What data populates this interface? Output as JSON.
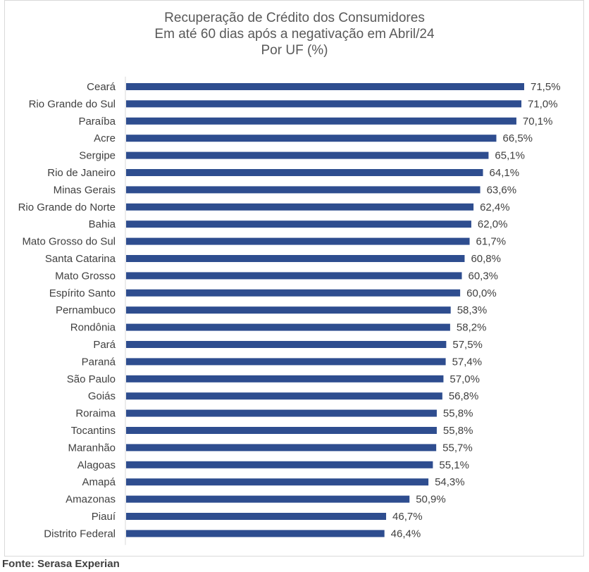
{
  "chart_data": {
    "type": "bar",
    "orientation": "horizontal",
    "title": [
      "Recuperação de Crédito dos Consumidores",
      "Em até 60 dias após a negativação em Abril/24",
      "Por UF (%)"
    ],
    "categories": [
      "Ceará",
      "Rio Grande do Sul",
      "Paraíba",
      "Acre",
      "Sergipe",
      "Rio de Janeiro",
      "Minas Gerais",
      "Rio Grande do Norte",
      "Bahia",
      "Mato Grosso do Sul",
      "Santa Catarina",
      "Mato Grosso",
      "Espírito Santo",
      "Pernambuco",
      "Rondônia",
      "Pará",
      "Paraná",
      "São Paulo",
      "Goiás",
      "Roraima",
      "Tocantins",
      "Maranhão",
      "Alagoas",
      "Amapá",
      "Amazonas",
      "Piauí",
      "Distrito Federal"
    ],
    "values": [
      71.5,
      71.0,
      70.1,
      66.5,
      65.1,
      64.1,
      63.6,
      62.4,
      62.0,
      61.7,
      60.8,
      60.3,
      60.0,
      58.3,
      58.2,
      57.5,
      57.4,
      57.0,
      56.8,
      55.8,
      55.8,
      55.7,
      55.1,
      54.3,
      50.9,
      46.7,
      46.4
    ],
    "data_labels": [
      "71,5%",
      "71,0%",
      "70,1%",
      "66,5%",
      "65,1%",
      "64,1%",
      "63,6%",
      "62,4%",
      "62,0%",
      "61,7%",
      "60,8%",
      "60,3%",
      "60,0%",
      "58,3%",
      "58,2%",
      "57,5%",
      "57,4%",
      "57,0%",
      "56,8%",
      "55,8%",
      "55,8%",
      "55,7%",
      "55,1%",
      "54,3%",
      "50,9%",
      "46,7%",
      "46,4%"
    ],
    "xlim": [
      0,
      71.5
    ],
    "bar_color": "#2e4d8f",
    "grid": false,
    "legend": "none"
  },
  "footer": {
    "source": "Fonte: Serasa Experian"
  }
}
